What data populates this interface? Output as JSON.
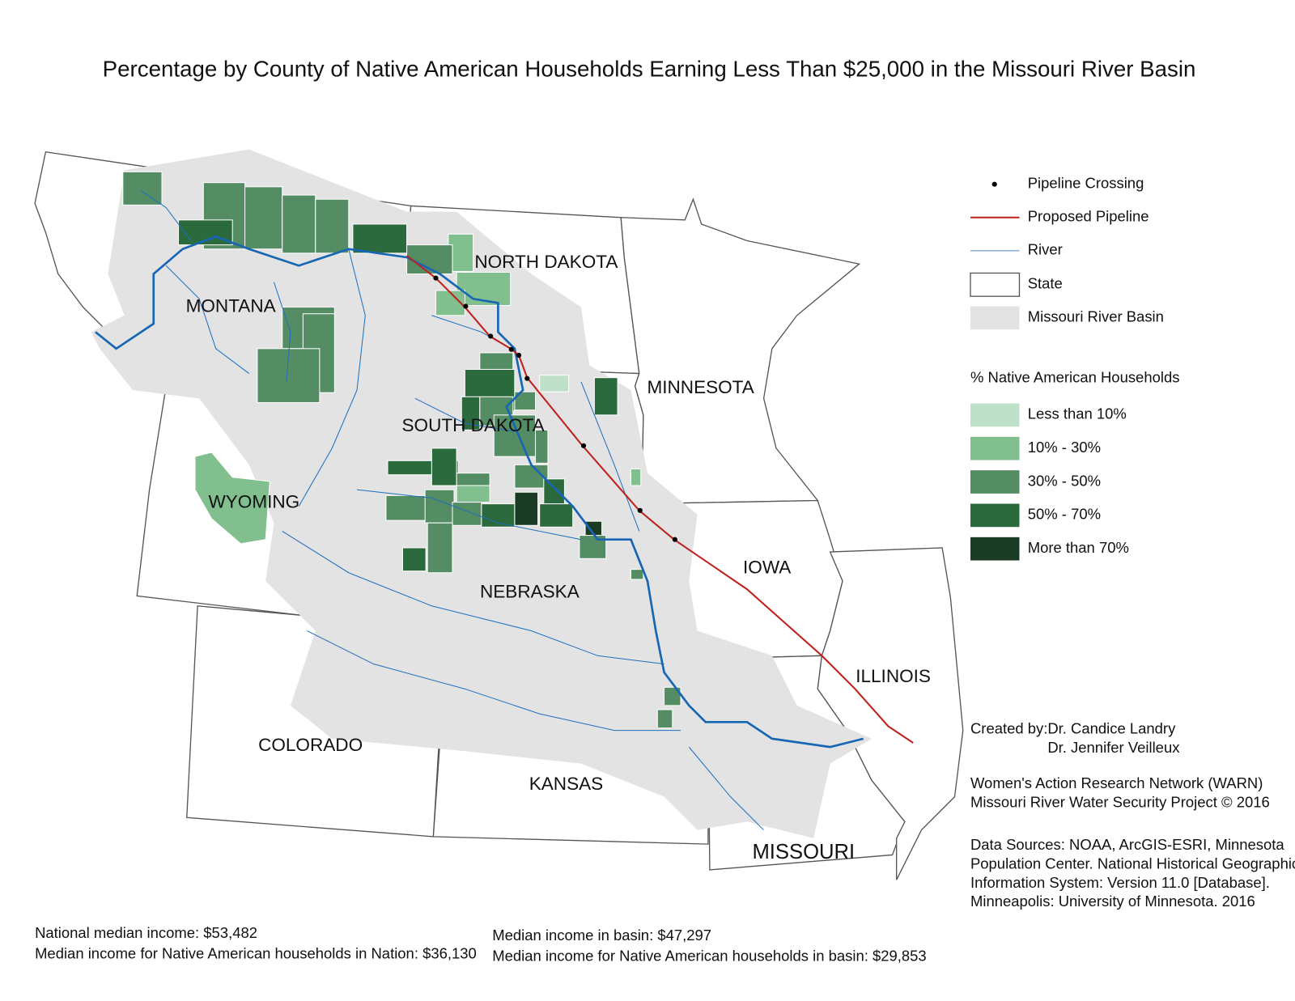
{
  "title": "Percentage by County of Native American Households Earning Less Than $25,000 in the Missouri River Basin",
  "legend": {
    "symbols": [
      "Pipeline Crossing",
      "Proposed Pipeline",
      "River",
      "State",
      "Missouri River Basin"
    ],
    "classes_title": "% Native American Households",
    "classes": [
      {
        "label": "Less than 10%",
        "color": "#bfe0c8"
      },
      {
        "label": "10% - 30%",
        "color": "#82bf8e"
      },
      {
        "label": "30% - 50%",
        "color": "#548c64"
      },
      {
        "label": "50% - 70%",
        "color": "#2b6a3d"
      },
      {
        "label": "More than 70%",
        "color": "#1a3b24"
      }
    ]
  },
  "states": [
    "MONTANA",
    "NORTH DAKOTA",
    "SOUTH DAKOTA",
    "WYOMING",
    "NEBRASKA",
    "COLORADO",
    "KANSAS",
    "MINNESOTA",
    "IOWA",
    "MISSOURI",
    "ILLINOIS"
  ],
  "credits": {
    "created_by_label": "Created by:",
    "authors": [
      "Dr. Candice Landry",
      "Dr. Jennifer Veilleux"
    ],
    "organization": [
      "Women's Action Research Network (WARN)",
      "Missouri River Water Security Project © 2016"
    ],
    "sources": [
      "Data Sources: NOAA, ArcGIS-ESRI, Minnesota",
      "Population Center. National Historical Geographic",
      "Information System: Version 11.0 [Database].",
      "Minneapolis: University of Minnesota. 2016"
    ]
  },
  "stats": {
    "national": [
      "National median income: $53,482",
      "Median income for Native American households in Nation: $36,130"
    ],
    "basin": [
      "Median income in basin: $47,297",
      "Median income for Native American households in basin: $29,853"
    ]
  }
}
